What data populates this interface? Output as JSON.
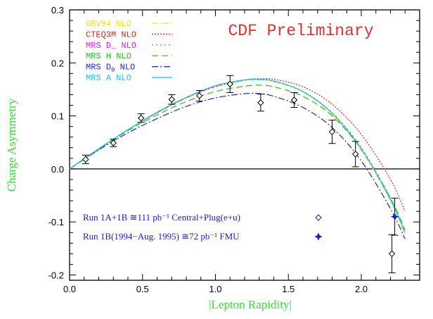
{
  "chart_data": {
    "type": "line",
    "title": "CDF Preliminary",
    "xlabel": "|Lepton Rapidity|",
    "ylabel": "Charge Asymmetry",
    "xlim": [
      0.0,
      2.4
    ],
    "ylim": [
      -0.21,
      0.3
    ],
    "x_ticks": [
      0.0,
      0.5,
      1.0,
      1.5,
      2.0
    ],
    "x_tick_labels": [
      "0.0",
      "0.5",
      "1.0",
      "1.5",
      "2.0"
    ],
    "y_ticks": [
      -0.2,
      -0.1,
      0.0,
      0.1,
      0.2,
      0.3
    ],
    "y_tick_labels": [
      "-0.2",
      "-0.1",
      "0.0",
      "0.1",
      "0.2",
      "0.3"
    ],
    "zero_line": true,
    "grid": false,
    "legend_position": "top-left",
    "series": [
      {
        "name": "GRV94 NLO",
        "color": "#e8e800",
        "dash": "8,3,2,3",
        "x": [
          0,
          0.2,
          0.4,
          0.6,
          0.8,
          1.0,
          1.2,
          1.3,
          1.4,
          1.6,
          1.8,
          2.0,
          2.2,
          2.3
        ],
        "y": [
          0,
          0.038,
          0.074,
          0.106,
          0.134,
          0.155,
          0.167,
          0.168,
          0.165,
          0.145,
          0.103,
          0.035,
          -0.06,
          -0.125
        ]
      },
      {
        "name": "CTEQ3M NLO",
        "color": "#e02020",
        "dash": "2,2",
        "x": [
          0,
          0.2,
          0.4,
          0.6,
          0.8,
          1.0,
          1.2,
          1.3,
          1.4,
          1.6,
          1.8,
          2.0,
          2.2,
          2.3
        ],
        "y": [
          0,
          0.038,
          0.074,
          0.106,
          0.134,
          0.156,
          0.168,
          0.17,
          0.169,
          0.155,
          0.122,
          0.065,
          -0.02,
          -0.08
        ]
      },
      {
        "name": "MRS D_ NLO",
        "color": "#e020e0",
        "dash": "2,4",
        "x": [
          0,
          0.2,
          0.4,
          0.6,
          0.8,
          1.0,
          1.2,
          1.3,
          1.4,
          1.6,
          1.8,
          2.0,
          2.2,
          2.3
        ],
        "y": [
          0,
          0.038,
          0.074,
          0.106,
          0.134,
          0.155,
          0.167,
          0.168,
          0.165,
          0.146,
          0.106,
          0.04,
          -0.055,
          -0.12
        ]
      },
      {
        "name": "MRS H NLO",
        "color": "#20c020",
        "dash": "9,5",
        "x": [
          0,
          0.2,
          0.4,
          0.6,
          0.8,
          1.0,
          1.2,
          1.3,
          1.4,
          1.6,
          1.8,
          2.0,
          2.2,
          2.3
        ],
        "y": [
          0,
          0.037,
          0.072,
          0.102,
          0.127,
          0.146,
          0.156,
          0.158,
          0.155,
          0.137,
          0.1,
          0.037,
          -0.055,
          -0.115
        ]
      },
      {
        "name": "MRS D0 NLO",
        "label_main": "MRS D",
        "label_sub": "0",
        "label_tail": " NLO",
        "color": "#2020e0",
        "dash": "9,3,2,3",
        "x": [
          0,
          0.2,
          0.4,
          0.6,
          0.8,
          1.0,
          1.2,
          1.3,
          1.4,
          1.6,
          1.8,
          2.0,
          2.2,
          2.3
        ],
        "y": [
          0,
          0.036,
          0.068,
          0.095,
          0.118,
          0.134,
          0.142,
          0.142,
          0.137,
          0.116,
          0.078,
          0.015,
          -0.075,
          -0.132
        ]
      },
      {
        "name": "MRS A NLO",
        "color": "#10c8e8",
        "dash": "",
        "x": [
          0,
          0.2,
          0.4,
          0.6,
          0.8,
          1.0,
          1.2,
          1.3,
          1.4,
          1.6,
          1.8,
          2.0,
          2.2,
          2.3
        ],
        "y": [
          0,
          0.038,
          0.074,
          0.107,
          0.135,
          0.157,
          0.168,
          0.169,
          0.166,
          0.146,
          0.105,
          0.038,
          -0.058,
          -0.12
        ]
      }
    ],
    "data_points": {
      "central_plug": {
        "label": "Run 1A+1B ≅111 pb⁻¹ Central+Plug(e+u)",
        "marker": "diamond",
        "x": [
          0.11,
          0.3,
          0.49,
          0.7,
          0.89,
          1.1,
          1.31,
          1.54,
          1.8,
          1.96,
          2.21
        ],
        "y": [
          0.018,
          0.049,
          0.096,
          0.131,
          0.138,
          0.16,
          0.125,
          0.13,
          0.07,
          0.028,
          -0.16
        ],
        "err": [
          0.008,
          0.007,
          0.008,
          0.009,
          0.01,
          0.016,
          0.016,
          0.014,
          0.022,
          0.024,
          0.036
        ]
      },
      "fmu": {
        "label": "Run 1B(1994−Aug. 1995) ≅72 pb⁻¹ FMU",
        "marker": "cross",
        "x": [
          2.21
        ],
        "y": [
          -0.09
        ],
        "err": [
          0.035
        ]
      }
    }
  }
}
